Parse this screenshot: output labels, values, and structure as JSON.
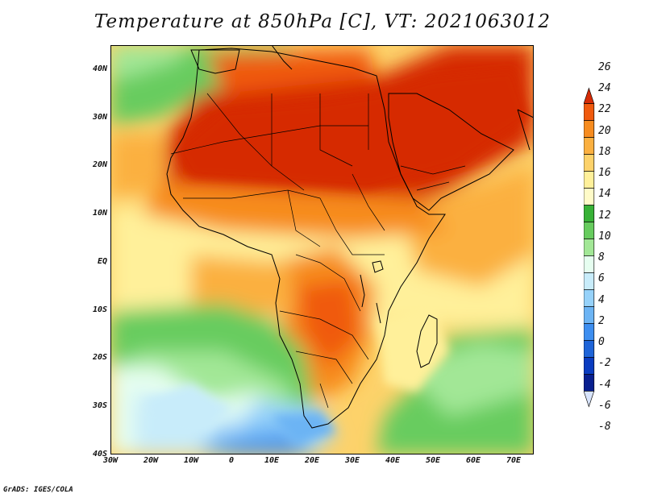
{
  "title": "Temperature at 850hPa [C], VT: 2021063012",
  "credit": "GrADS: IGES/COLA",
  "map": {
    "lon_range": [
      -30,
      75
    ],
    "lat_range": [
      -40,
      45
    ],
    "lat_ticks": [
      {
        "value": 40,
        "label": "40N"
      },
      {
        "value": 30,
        "label": "30N"
      },
      {
        "value": 20,
        "label": "20N"
      },
      {
        "value": 10,
        "label": "10N"
      },
      {
        "value": 0,
        "label": "EQ"
      },
      {
        "value": -10,
        "label": "10S"
      },
      {
        "value": -20,
        "label": "20S"
      },
      {
        "value": -30,
        "label": "30S"
      },
      {
        "value": -40,
        "label": "40S"
      }
    ],
    "lon_ticks": [
      {
        "value": -30,
        "label": "30W"
      },
      {
        "value": -20,
        "label": "20W"
      },
      {
        "value": -10,
        "label": "10W"
      },
      {
        "value": 0,
        "label": "0"
      },
      {
        "value": 10,
        "label": "10E"
      },
      {
        "value": 20,
        "label": "20E"
      },
      {
        "value": 30,
        "label": "30E"
      },
      {
        "value": 40,
        "label": "40E"
      },
      {
        "value": 50,
        "label": "50E"
      },
      {
        "value": 60,
        "label": "60E"
      },
      {
        "value": 70,
        "label": "70E"
      }
    ],
    "coastline_color": "#000000"
  },
  "colorbar": {
    "labels": [
      "26",
      "24",
      "22",
      "20",
      "18",
      "16",
      "14",
      "12",
      "10",
      "8",
      "6",
      "4",
      "2",
      "0",
      "-2",
      "-4",
      "-6",
      "-8"
    ],
    "colors": [
      "#d62b06",
      "#f05a0e",
      "#f78c1f",
      "#fbb040",
      "#fdd26a",
      "#fff09a",
      "#fffbc8",
      "#37b236",
      "#67cc5e",
      "#a2e796",
      "#e6fef0",
      "#c8ecfa",
      "#96d2fa",
      "#6cb4f4",
      "#3d8ef0",
      "#1e64d8",
      "#0a3cc0",
      "#081f8f",
      "#0a1466"
    ],
    "top_arrow_color": "#d62b06",
    "bottom_arrow_color": "#d8e4fc"
  }
}
